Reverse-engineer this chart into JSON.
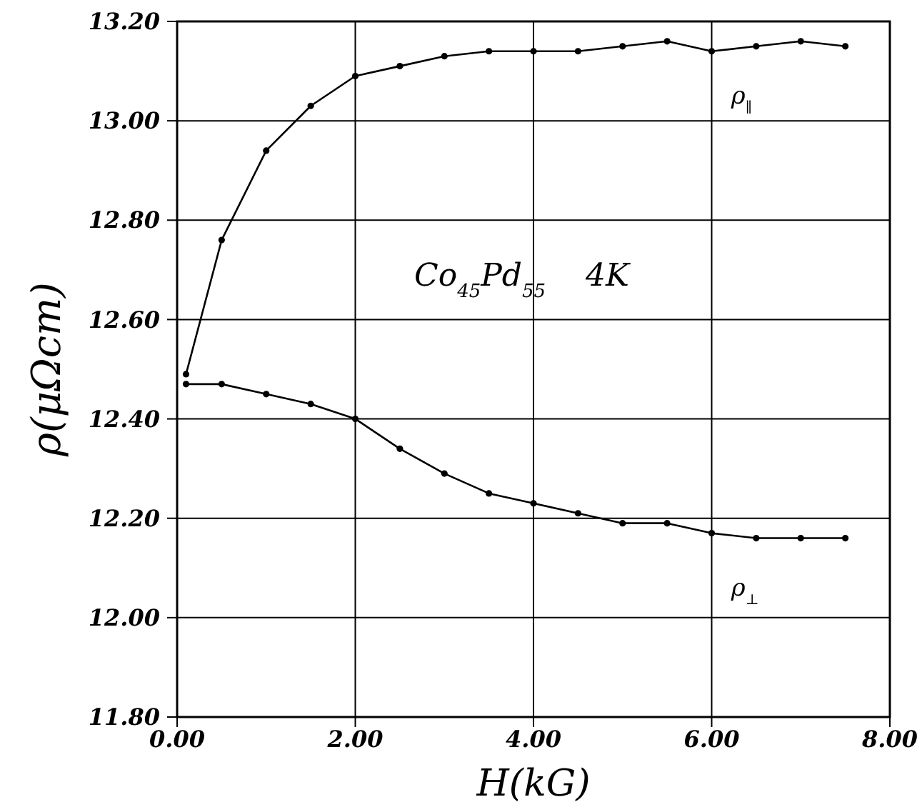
{
  "chart_data": {
    "type": "line",
    "xlabel": "H(kG)",
    "ylabel": "ρ(μΩcm)",
    "xlim": [
      0,
      8
    ],
    "xticks": [
      {
        "value": 0,
        "label": "0.00"
      },
      {
        "value": 2,
        "label": "2.00"
      },
      {
        "value": 4,
        "label": "4.00"
      },
      {
        "value": 6,
        "label": "6.00"
      },
      {
        "value": 8,
        "label": "8.00"
      }
    ],
    "ylim": [
      11.8,
      13.2
    ],
    "yticks": [
      {
        "value": 11.8,
        "label": "11.80"
      },
      {
        "value": 12,
        "label": "12.00"
      },
      {
        "value": 12.2,
        "label": "12.20"
      },
      {
        "value": 12.4,
        "label": "12.40"
      },
      {
        "value": 12.6,
        "label": "12.60"
      },
      {
        "value": 12.8,
        "label": "12.80"
      },
      {
        "value": 13,
        "label": "13.00"
      },
      {
        "value": 13.2,
        "label": "13.20"
      }
    ],
    "grid": true,
    "marker": "circle",
    "line_style": "solid",
    "annotations": [
      "Co$_{45}$Pd$_{55}$    4K"
    ],
    "series": [
      {
        "name": "ρ$_{∥}$",
        "color": "#000000",
        "x": [
          0.1,
          0.5,
          1,
          1.5,
          2,
          2.5,
          3,
          3.5,
          4,
          4.5,
          5,
          5.5,
          6,
          6.5,
          7,
          7.5
        ],
        "values": [
          12.49,
          12.76,
          12.94,
          13.03,
          13.09,
          13.11,
          13.13,
          13.14,
          13.14,
          13.14,
          13.15,
          13.16,
          13.14,
          13.15,
          13.16,
          13.15
        ]
      },
      {
        "name": "ρ$_{⊥}$",
        "color": "#000000",
        "x": [
          0.1,
          0.5,
          1,
          1.5,
          2,
          2.5,
          3,
          3.5,
          4,
          4.5,
          5,
          5.5,
          6,
          6.5,
          7,
          7.5
        ],
        "values": [
          12.47,
          12.47,
          12.45,
          12.43,
          12.4,
          12.34,
          12.29,
          12.25,
          12.23,
          12.21,
          12.19,
          12.19,
          12.17,
          12.16,
          12.16,
          12.16
        ]
      }
    ]
  }
}
